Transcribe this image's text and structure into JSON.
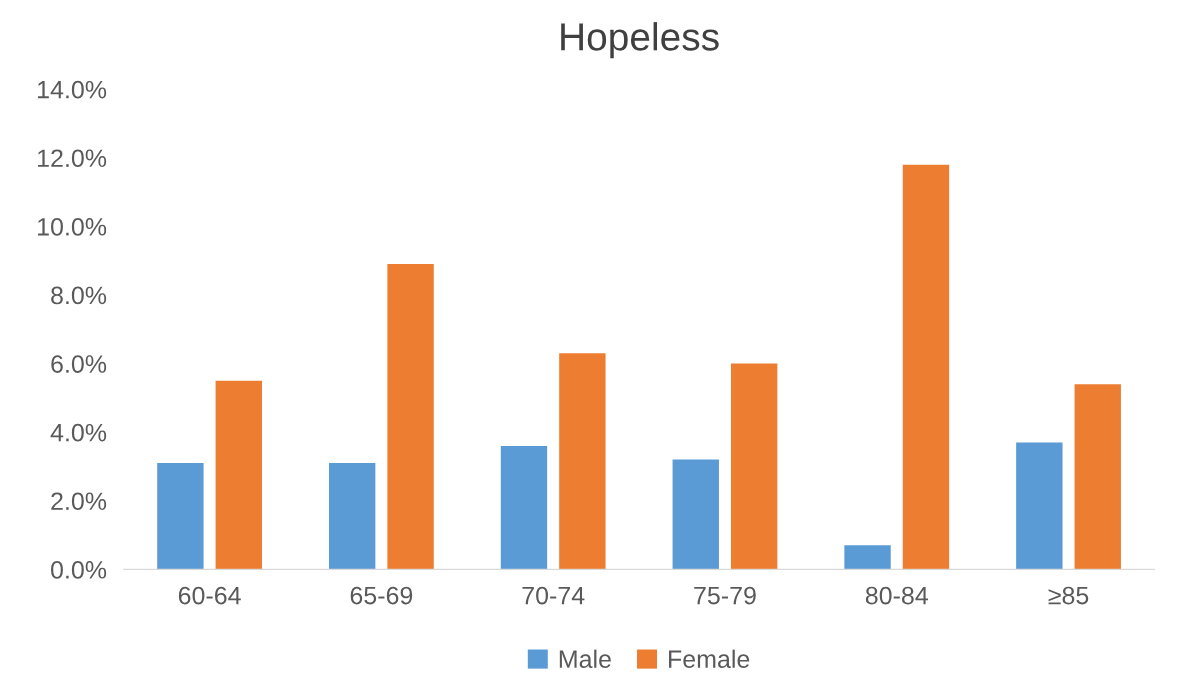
{
  "chart_data": {
    "type": "bar",
    "title": "Hopeless",
    "categories": [
      "60-64",
      "65-69",
      "70-74",
      "75-79",
      "80-84",
      "≥85"
    ],
    "series": [
      {
        "name": "Male",
        "color": "#5b9bd5",
        "values": [
          3.1,
          3.1,
          3.6,
          3.2,
          0.7,
          3.7
        ]
      },
      {
        "name": "Female",
        "color": "#ed7d31",
        "values": [
          5.5,
          8.9,
          6.3,
          6.0,
          11.8,
          5.4
        ]
      }
    ],
    "ylim": [
      0,
      14
    ],
    "yticks": [
      {
        "value": 0,
        "label": "0.0%"
      },
      {
        "value": 2,
        "label": "2.0%"
      },
      {
        "value": 4,
        "label": "4.0%"
      },
      {
        "value": 6,
        "label": "6.0%"
      },
      {
        "value": 8,
        "label": "8.0%"
      },
      {
        "value": 10,
        "label": "10.0%"
      },
      {
        "value": 12,
        "label": "12.0%"
      },
      {
        "value": 14,
        "label": "14.0%"
      }
    ],
    "grid": false,
    "legend": "bottom"
  }
}
